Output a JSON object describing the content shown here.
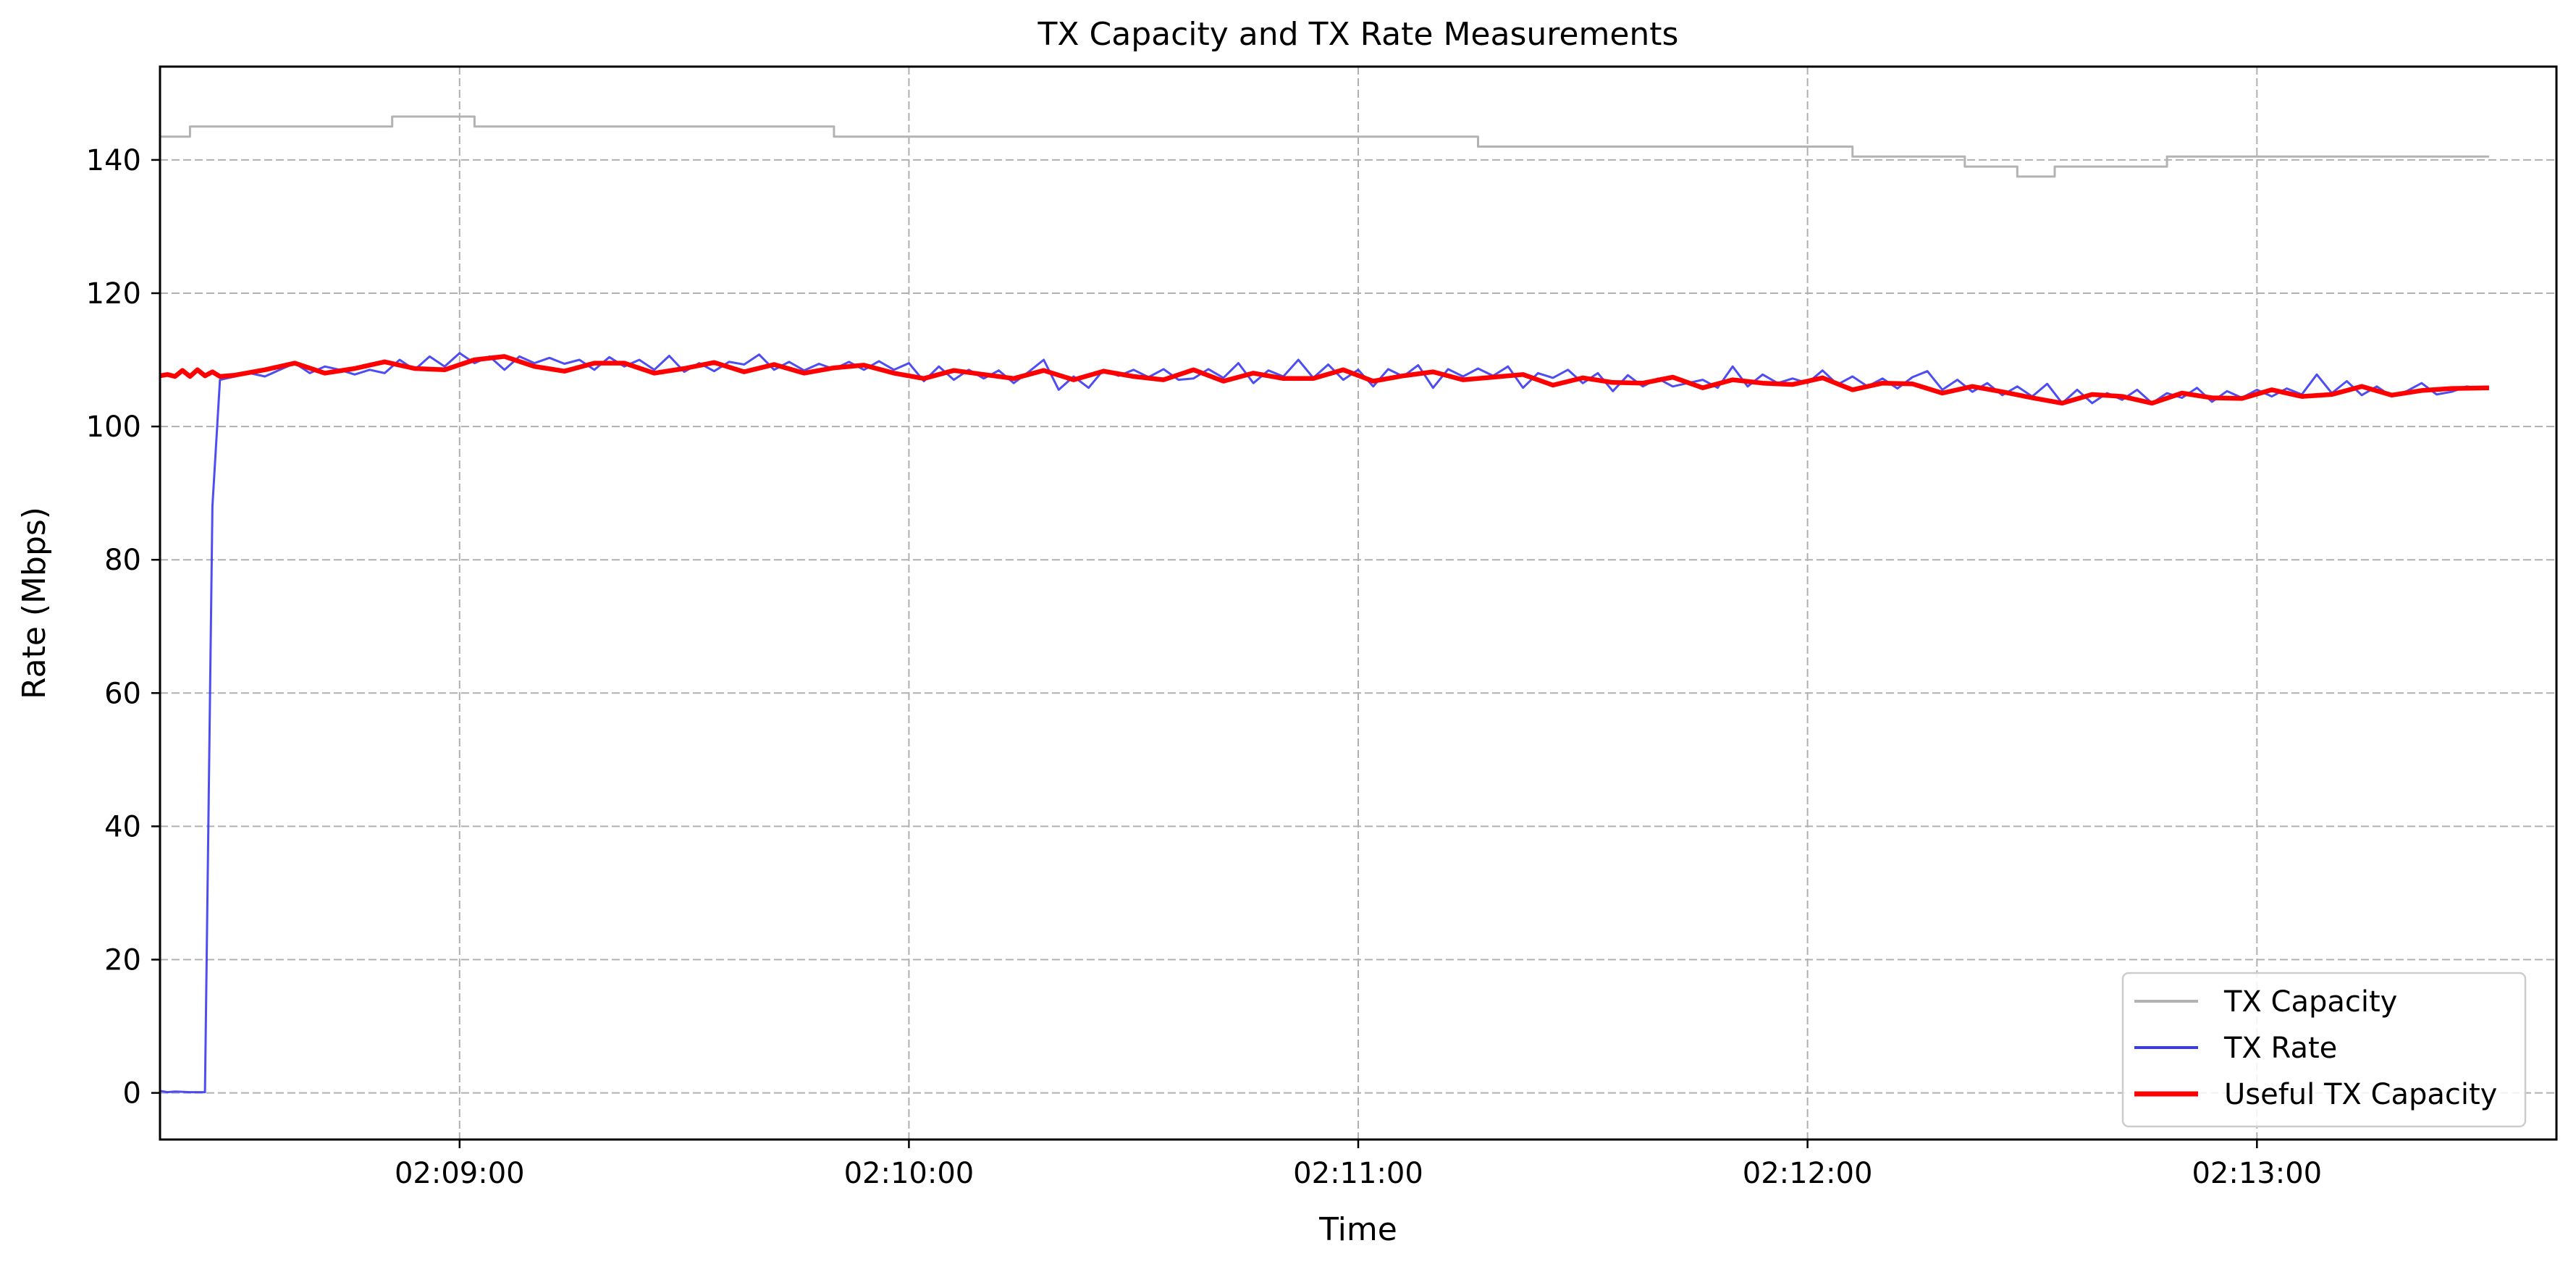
{
  "chart_data": {
    "type": "line",
    "title": "TX Capacity and TX Rate Measurements",
    "xlabel": "Time",
    "ylabel": "Rate (Mbps)",
    "xlim": [
      "02:08:20",
      "02:13:40"
    ],
    "ylim": [
      -7,
      154
    ],
    "grid": true,
    "legend": "lower right",
    "x_ticks": [
      "02:09:00",
      "02:10:00",
      "02:11:00",
      "02:12:00",
      "02:13:00"
    ],
    "y_ticks": [
      0,
      20,
      40,
      60,
      80,
      100,
      120,
      140
    ],
    "series": [
      {
        "name": "TX Capacity",
        "color": "#b3b3b3",
        "step": true,
        "points": [
          [
            "02:08:20",
            143.5
          ],
          [
            "02:08:23",
            143.5
          ],
          [
            "02:08:24",
            145
          ],
          [
            "02:08:50",
            145
          ],
          [
            "02:08:51",
            146.5
          ],
          [
            "02:09:01",
            146.5
          ],
          [
            "02:09:02",
            145
          ],
          [
            "02:09:49",
            145
          ],
          [
            "02:09:50",
            143.5
          ],
          [
            "02:11:15",
            143.5
          ],
          [
            "02:11:16",
            142
          ],
          [
            "02:12:05",
            142
          ],
          [
            "02:12:06",
            140.5
          ],
          [
            "02:12:20",
            140.5
          ],
          [
            "02:12:21",
            139
          ],
          [
            "02:12:27",
            139
          ],
          [
            "02:12:28",
            137.5
          ],
          [
            "02:12:32",
            137.5
          ],
          [
            "02:12:33",
            139
          ],
          [
            "02:12:47",
            139
          ],
          [
            "02:12:48",
            140.5
          ],
          [
            "02:13:31",
            140.5
          ]
        ]
      },
      {
        "name": "TX Rate",
        "color": "#3a3aef",
        "points": [
          [
            "02:08:20",
            0.3
          ],
          [
            "02:08:21",
            0.1
          ],
          [
            "02:08:22",
            0.2
          ],
          [
            "02:08:24",
            0.1
          ],
          [
            "02:08:26",
            0.1
          ],
          [
            "02:08:27",
            88
          ],
          [
            "02:08:28",
            107
          ],
          [
            "02:08:30",
            107.5
          ],
          [
            "02:08:32",
            108
          ],
          [
            "02:08:34",
            107.5
          ],
          [
            "02:08:36",
            108.5
          ],
          [
            "02:08:38",
            109.5
          ],
          [
            "02:08:40",
            108
          ],
          [
            "02:08:42",
            109
          ],
          [
            "02:08:44",
            108.5
          ],
          [
            "02:08:46",
            107.8
          ],
          [
            "02:08:48",
            108.5
          ],
          [
            "02:08:50",
            108
          ],
          [
            "02:08:52",
            110
          ],
          [
            "02:08:54",
            108.5
          ],
          [
            "02:08:56",
            110.5
          ],
          [
            "02:08:58",
            109
          ],
          [
            "02:09:00",
            111
          ],
          [
            "02:09:02",
            109.5
          ],
          [
            "02:09:04",
            110.5
          ],
          [
            "02:09:06",
            108.5
          ],
          [
            "02:09:08",
            110.5
          ],
          [
            "02:09:10",
            109.5
          ],
          [
            "02:09:12",
            110.3
          ],
          [
            "02:09:14",
            109.4
          ],
          [
            "02:09:16",
            110
          ],
          [
            "02:09:18",
            108.5
          ],
          [
            "02:09:20",
            110.4
          ],
          [
            "02:09:22",
            109
          ],
          [
            "02:09:24",
            110
          ],
          [
            "02:09:26",
            108.5
          ],
          [
            "02:09:28",
            110.6
          ],
          [
            "02:09:30",
            108.2
          ],
          [
            "02:09:32",
            109.5
          ],
          [
            "02:09:34",
            108.3
          ],
          [
            "02:09:36",
            109.7
          ],
          [
            "02:09:38",
            109.3
          ],
          [
            "02:09:40",
            110.8
          ],
          [
            "02:09:42",
            108.5
          ],
          [
            "02:09:44",
            109.7
          ],
          [
            "02:09:46",
            108.4
          ],
          [
            "02:09:48",
            109.4
          ],
          [
            "02:09:50",
            108.6
          ],
          [
            "02:09:52",
            109.7
          ],
          [
            "02:09:54",
            108.5
          ],
          [
            "02:09:56",
            109.8
          ],
          [
            "02:09:58",
            108.5
          ],
          [
            "02:10:00",
            109.5
          ],
          [
            "02:10:02",
            106.8
          ],
          [
            "02:10:04",
            109
          ],
          [
            "02:10:06",
            107
          ],
          [
            "02:10:08",
            108.5
          ],
          [
            "02:10:10",
            107.2
          ],
          [
            "02:10:12",
            108.4
          ],
          [
            "02:10:14",
            106.5
          ],
          [
            "02:10:16",
            108.2
          ],
          [
            "02:10:18",
            110
          ],
          [
            "02:10:20",
            105.5
          ],
          [
            "02:10:22",
            107.5
          ],
          [
            "02:10:24",
            105.8
          ],
          [
            "02:10:26",
            108.5
          ],
          [
            "02:10:28",
            107.6
          ],
          [
            "02:10:30",
            108.5
          ],
          [
            "02:10:32",
            107.4
          ],
          [
            "02:10:34",
            108.6
          ],
          [
            "02:10:36",
            107
          ],
          [
            "02:10:38",
            107.2
          ],
          [
            "02:10:40",
            108.6
          ],
          [
            "02:10:42",
            107.3
          ],
          [
            "02:10:44",
            109.5
          ],
          [
            "02:10:46",
            106.5
          ],
          [
            "02:10:48",
            108.4
          ],
          [
            "02:10:50",
            107.5
          ],
          [
            "02:10:52",
            110
          ],
          [
            "02:10:54",
            107.3
          ],
          [
            "02:10:56",
            109.3
          ],
          [
            "02:10:58",
            107
          ],
          [
            "02:11:00",
            108.5
          ],
          [
            "02:11:02",
            106
          ],
          [
            "02:11:04",
            108.6
          ],
          [
            "02:11:06",
            107.5
          ],
          [
            "02:11:08",
            109.2
          ],
          [
            "02:11:10",
            105.8
          ],
          [
            "02:11:12",
            108.6
          ],
          [
            "02:11:14",
            107.5
          ],
          [
            "02:11:16",
            108.7
          ],
          [
            "02:11:18",
            107.6
          ],
          [
            "02:11:20",
            109
          ],
          [
            "02:11:22",
            105.8
          ],
          [
            "02:11:24",
            108
          ],
          [
            "02:11:26",
            107.3
          ],
          [
            "02:11:28",
            108.5
          ],
          [
            "02:11:30",
            106.5
          ],
          [
            "02:11:32",
            108
          ],
          [
            "02:11:34",
            105.3
          ],
          [
            "02:11:36",
            107.7
          ],
          [
            "02:11:38",
            106
          ],
          [
            "02:11:40",
            107.2
          ],
          [
            "02:11:42",
            106
          ],
          [
            "02:11:44",
            106.5
          ],
          [
            "02:11:46",
            107
          ],
          [
            "02:11:48",
            105.8
          ],
          [
            "02:11:50",
            109
          ],
          [
            "02:11:52",
            106
          ],
          [
            "02:11:54",
            107.8
          ],
          [
            "02:11:56",
            106.5
          ],
          [
            "02:11:58",
            107.2
          ],
          [
            "02:12:00",
            106.5
          ],
          [
            "02:12:02",
            108.4
          ],
          [
            "02:12:04",
            106.3
          ],
          [
            "02:12:06",
            107.5
          ],
          [
            "02:12:08",
            106
          ],
          [
            "02:12:10",
            107.2
          ],
          [
            "02:12:12",
            105.7
          ],
          [
            "02:12:14",
            107.4
          ],
          [
            "02:12:16",
            108.3
          ],
          [
            "02:12:18",
            105.5
          ],
          [
            "02:12:20",
            107
          ],
          [
            "02:12:22",
            105.2
          ],
          [
            "02:12:24",
            106.5
          ],
          [
            "02:12:26",
            104.7
          ],
          [
            "02:12:28",
            106
          ],
          [
            "02:12:30",
            104.5
          ],
          [
            "02:12:32",
            106.4
          ],
          [
            "02:12:34",
            103.5
          ],
          [
            "02:12:36",
            105.5
          ],
          [
            "02:12:38",
            103.5
          ],
          [
            "02:12:40",
            105
          ],
          [
            "02:12:42",
            104
          ],
          [
            "02:12:44",
            105.5
          ],
          [
            "02:12:46",
            103.5
          ],
          [
            "02:12:48",
            105
          ],
          [
            "02:12:50",
            104.3
          ],
          [
            "02:12:52",
            105.8
          ],
          [
            "02:12:54",
            103.7
          ],
          [
            "02:12:56",
            105.3
          ],
          [
            "02:12:58",
            104.3
          ],
          [
            "02:13:00",
            105.5
          ],
          [
            "02:13:02",
            104.5
          ],
          [
            "02:13:04",
            105.7
          ],
          [
            "02:13:06",
            104.8
          ],
          [
            "02:13:08",
            107.8
          ],
          [
            "02:13:10",
            105
          ],
          [
            "02:13:12",
            106.8
          ],
          [
            "02:13:14",
            104.7
          ],
          [
            "02:13:16",
            106
          ],
          [
            "02:13:18",
            104.5
          ],
          [
            "02:13:20",
            105.3
          ],
          [
            "02:13:22",
            106.5
          ],
          [
            "02:13:24",
            104.8
          ],
          [
            "02:13:26",
            105.2
          ],
          [
            "02:13:28",
            106
          ],
          [
            "02:13:30",
            105.7
          ],
          [
            "02:13:31",
            106
          ]
        ]
      },
      {
        "name": "Useful TX Capacity",
        "color": "#ff0000",
        "points": [
          [
            "02:08:20",
            107.6
          ],
          [
            "02:08:21",
            107.8
          ],
          [
            "02:08:22",
            107.5
          ],
          [
            "02:08:23",
            108.4
          ],
          [
            "02:08:24",
            107.5
          ],
          [
            "02:08:25",
            108.5
          ],
          [
            "02:08:26",
            107.6
          ],
          [
            "02:08:27",
            108.2
          ],
          [
            "02:08:28",
            107.5
          ],
          [
            "02:08:30",
            107.7
          ],
          [
            "02:08:34",
            108.5
          ],
          [
            "02:08:38",
            109.5
          ],
          [
            "02:08:42",
            108
          ],
          [
            "02:08:46",
            108.7
          ],
          [
            "02:08:50",
            109.7
          ],
          [
            "02:08:54",
            108.7
          ],
          [
            "02:08:58",
            108.5
          ],
          [
            "02:09:02",
            110
          ],
          [
            "02:09:06",
            110.5
          ],
          [
            "02:09:10",
            109
          ],
          [
            "02:09:14",
            108.3
          ],
          [
            "02:09:18",
            109.5
          ],
          [
            "02:09:22",
            109.5
          ],
          [
            "02:09:26",
            108
          ],
          [
            "02:09:30",
            108.7
          ],
          [
            "02:09:34",
            109.6
          ],
          [
            "02:09:38",
            108.2
          ],
          [
            "02:09:42",
            109.3
          ],
          [
            "02:09:46",
            108
          ],
          [
            "02:09:50",
            108.8
          ],
          [
            "02:09:54",
            109.2
          ],
          [
            "02:09:58",
            108
          ],
          [
            "02:10:02",
            107.2
          ],
          [
            "02:10:06",
            108.4
          ],
          [
            "02:10:10",
            107.8
          ],
          [
            "02:10:14",
            107.2
          ],
          [
            "02:10:18",
            108.4
          ],
          [
            "02:10:22",
            107
          ],
          [
            "02:10:26",
            108.3
          ],
          [
            "02:10:30",
            107.5
          ],
          [
            "02:10:34",
            107
          ],
          [
            "02:10:38",
            108.5
          ],
          [
            "02:10:42",
            106.8
          ],
          [
            "02:10:46",
            108
          ],
          [
            "02:10:50",
            107.2
          ],
          [
            "02:10:54",
            107.2
          ],
          [
            "02:10:58",
            108.5
          ],
          [
            "02:11:02",
            106.8
          ],
          [
            "02:11:06",
            107.6
          ],
          [
            "02:11:10",
            108.2
          ],
          [
            "02:11:14",
            107
          ],
          [
            "02:11:18",
            107.4
          ],
          [
            "02:11:22",
            107.8
          ],
          [
            "02:11:26",
            106.2
          ],
          [
            "02:11:30",
            107.3
          ],
          [
            "02:11:34",
            106.6
          ],
          [
            "02:11:38",
            106.5
          ],
          [
            "02:11:42",
            107.4
          ],
          [
            "02:11:46",
            105.8
          ],
          [
            "02:11:50",
            107
          ],
          [
            "02:11:54",
            106.5
          ],
          [
            "02:11:58",
            106.3
          ],
          [
            "02:12:02",
            107.3
          ],
          [
            "02:12:06",
            105.5
          ],
          [
            "02:12:10",
            106.5
          ],
          [
            "02:12:14",
            106.4
          ],
          [
            "02:12:18",
            105
          ],
          [
            "02:12:22",
            106
          ],
          [
            "02:12:26",
            105.2
          ],
          [
            "02:12:30",
            104.3
          ],
          [
            "02:12:34",
            103.5
          ],
          [
            "02:12:38",
            104.8
          ],
          [
            "02:12:42",
            104.5
          ],
          [
            "02:12:46",
            103.5
          ],
          [
            "02:12:50",
            105
          ],
          [
            "02:12:54",
            104.3
          ],
          [
            "02:12:58",
            104.2
          ],
          [
            "02:13:02",
            105.5
          ],
          [
            "02:13:06",
            104.5
          ],
          [
            "02:13:10",
            104.8
          ],
          [
            "02:13:14",
            106
          ],
          [
            "02:13:18",
            104.7
          ],
          [
            "02:13:22",
            105.4
          ],
          [
            "02:13:26",
            105.7
          ],
          [
            "02:13:31",
            105.8
          ]
        ]
      }
    ]
  }
}
